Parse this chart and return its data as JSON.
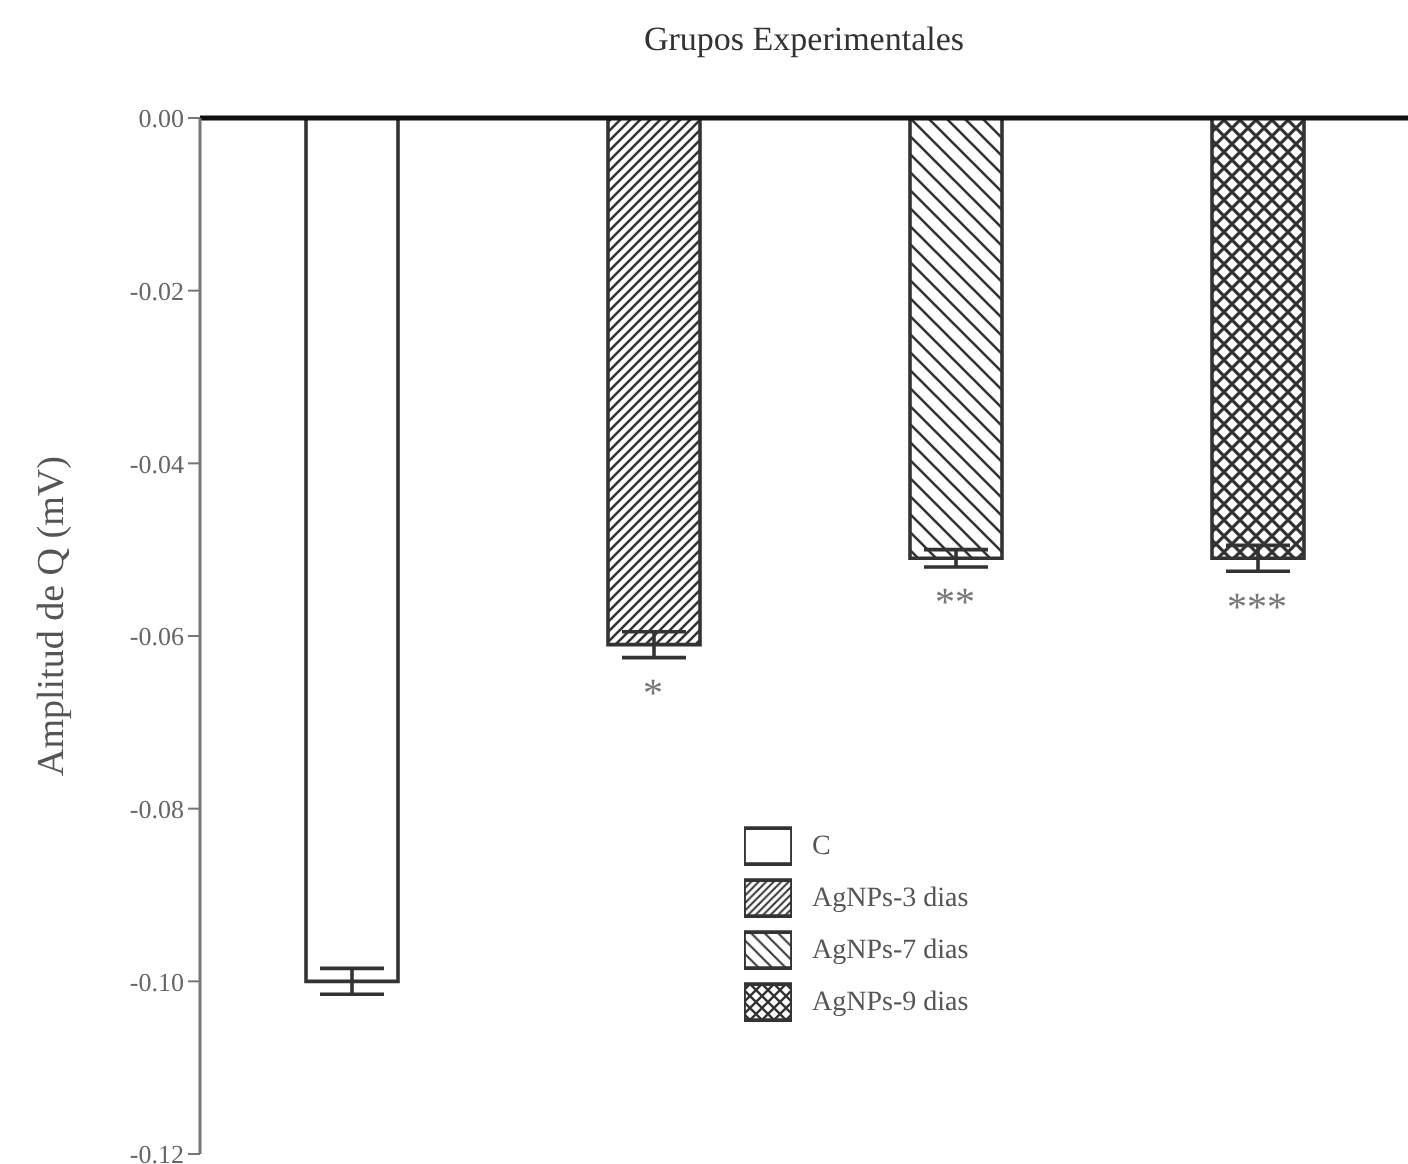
{
  "chart_data": {
    "type": "bar",
    "xlabel": "Grupos Experimentales",
    "ylabel": "Amplitud de Q (mV)",
    "categories": [
      null,
      null,
      null,
      null
    ],
    "stacked": true,
    "series": [
      {
        "name": "C",
        "color": "#333333",
        "values": [
          -0.1,
          null,
          null,
          null
        ],
        "errors": [
          0.0015,
          null,
          null,
          null
        ]
      },
      {
        "name": "AgNPs-3  dias",
        "color": "#333333",
        "values": [
          null,
          -0.061,
          null,
          null
        ],
        "errors": [
          null,
          0.0015,
          null,
          null
        ]
      },
      {
        "name": "AgNPs-7 dias",
        "color": "#333333",
        "values": [
          null,
          null,
          -0.051,
          null
        ],
        "errors": [
          null,
          null,
          0.001,
          null
        ]
      },
      {
        "name": "AgNPs-9  dias",
        "color": "#333333",
        "values": [
          null,
          null,
          null,
          -0.051
        ],
        "errors": [
          null,
          null,
          null,
          0.0015
        ]
      }
    ],
    "ylim": [
      -0.12,
      0
    ],
    "yticks": [
      {
        "value": 0,
        "label": "0.00"
      },
      {
        "value": -0.02,
        "label": "-0.02"
      },
      {
        "value": -0.04,
        "label": "-0.04"
      },
      {
        "value": -0.06,
        "label": "-0.06"
      },
      {
        "value": -0.08,
        "label": "-0.08"
      },
      {
        "value": -0.1,
        "label": "-0.10"
      },
      {
        "value": -0.12,
        "label": "-0.12"
      }
    ],
    "annotations": [
      "*",
      "**",
      "***"
    ],
    "legend": "bottom",
    "grid": false
  }
}
